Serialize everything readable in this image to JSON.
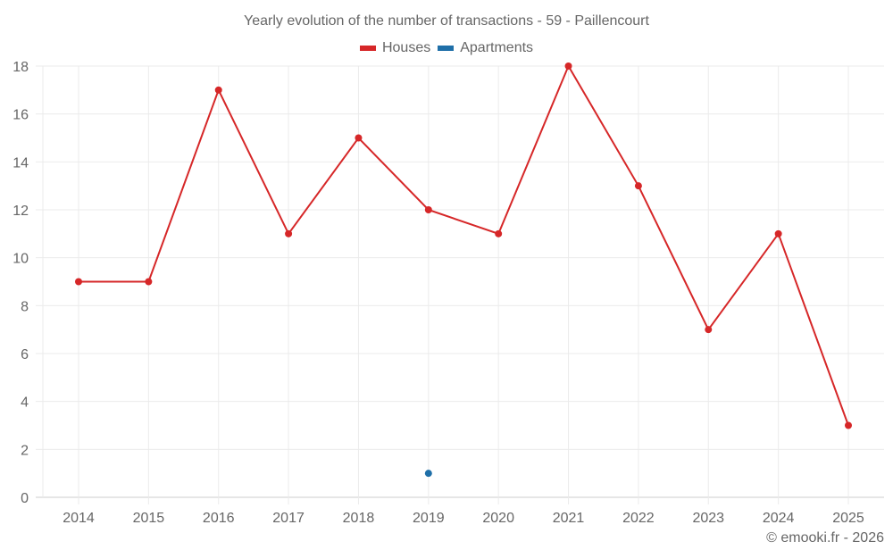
{
  "title": "Yearly evolution of the number of transactions - 59 - Paillencourt",
  "legend": [
    {
      "label": "Houses",
      "color": "#d62728"
    },
    {
      "label": "Apartments",
      "color": "#1f6fa8"
    }
  ],
  "credit": "© emooki.fr - 2026",
  "chart_data": {
    "type": "line",
    "title": "Yearly evolution of the number of transactions - 59 - Paillencourt",
    "xlabel": "",
    "ylabel": "",
    "categories": [
      "2014",
      "2015",
      "2016",
      "2017",
      "2018",
      "2019",
      "2020",
      "2021",
      "2022",
      "2023",
      "2024",
      "2025"
    ],
    "series": [
      {
        "name": "Houses",
        "color": "#d62728",
        "values": [
          9,
          9,
          17,
          11,
          15,
          12,
          11,
          18,
          13,
          7,
          11,
          3
        ]
      },
      {
        "name": "Apartments",
        "color": "#1f6fa8",
        "values": [
          null,
          null,
          null,
          null,
          null,
          1,
          null,
          null,
          null,
          null,
          null,
          null
        ]
      }
    ],
    "ylim": [
      0,
      18
    ],
    "yticks": [
      0,
      2,
      4,
      6,
      8,
      10,
      12,
      14,
      16,
      18
    ],
    "grid": true,
    "legend_position": "top"
  }
}
